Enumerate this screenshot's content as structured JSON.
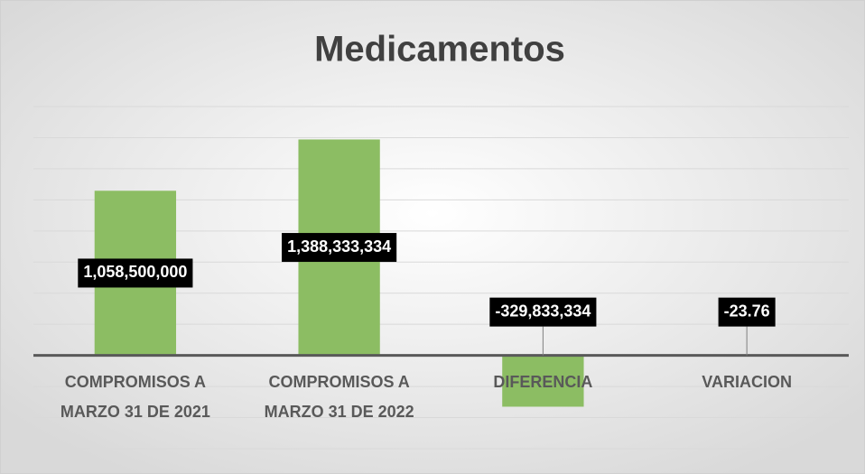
{
  "chart_data": {
    "type": "bar",
    "title": "Medicamentos",
    "categories": [
      "COMPROMISOS A MARZO 31 DE 2021",
      "COMPROMISOS A MARZO 31 DE 2022",
      "DIFERENCIA",
      "VARIACION"
    ],
    "values": [
      1058500000,
      1388333334,
      -329833334,
      -23.76
    ],
    "value_labels": [
      "1,058,500,000",
      "1,388,333,334",
      "-329,833,334",
      "-23.76"
    ],
    "color": "#8cbd63",
    "ylim": [
      -600000000,
      1600000000
    ],
    "yticks": [
      -600000000,
      -400000000,
      -200000000,
      0,
      200000000,
      400000000,
      600000000,
      800000000,
      1000000000,
      1200000000,
      1400000000,
      1600000000
    ],
    "grid": true
  }
}
